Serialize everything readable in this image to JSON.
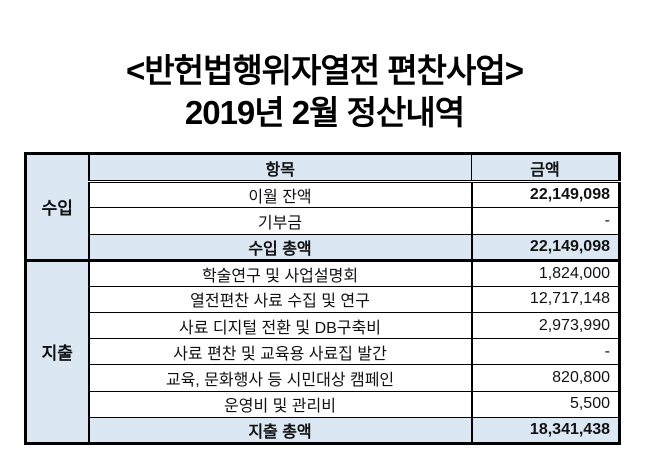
{
  "title": {
    "line1": "<반헌법행위자열전 편찬사업>",
    "line2": "2019년 2월 정산내역"
  },
  "colors": {
    "highlight": "#dbe8f4",
    "border": "#000000"
  },
  "table": {
    "columns": {
      "item": "항목",
      "amount": "금액"
    },
    "income": {
      "label": "수입",
      "rows": [
        {
          "item": "이월 잔액",
          "amount": "22,149,098"
        },
        {
          "item": "기부금",
          "amount": "-"
        }
      ],
      "total": {
        "item": "수입 총액",
        "amount": "22,149,098"
      }
    },
    "expense": {
      "label": "지출",
      "rows": [
        {
          "item": "학술연구 및 사업설명회",
          "amount": "1,824,000"
        },
        {
          "item": "열전편찬 사료 수집 및 연구",
          "amount": "12,717,148"
        },
        {
          "item": "사료 디지털 전환 및 DB구축비",
          "amount": "2,973,990"
        },
        {
          "item": "사료 편찬 및 교육용 사료집 발간",
          "amount": "-"
        },
        {
          "item": "교육, 문화행사 등 시민대상 캠페인",
          "amount": "820,800"
        },
        {
          "item": "운영비 및 관리비",
          "amount": "5,500"
        }
      ],
      "total": {
        "item": "지출 총액",
        "amount": "18,341,438"
      }
    }
  }
}
